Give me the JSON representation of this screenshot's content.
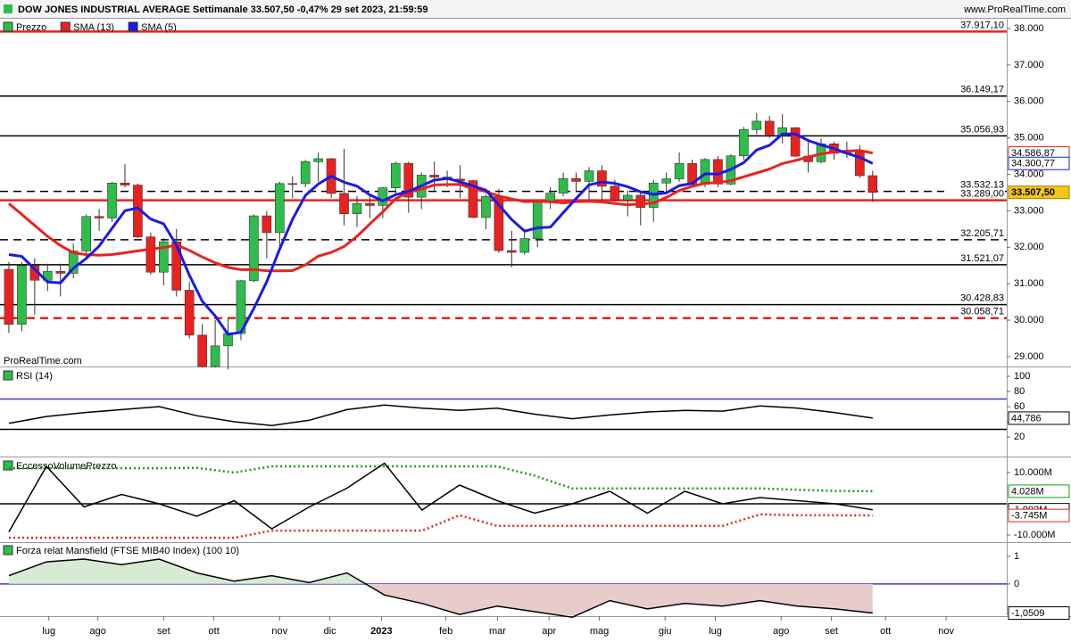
{
  "header": {
    "title": "DOW JONES INDUSTRIAL AVERAGE Settimanale 33.507,50 -0,47% 29 set 2023, 21:59:59",
    "site": "www.ProRealTime.com",
    "watermark": "ProRealTime.com"
  },
  "xaxis": {
    "xlim": [
      -0.69,
      77.4
    ],
    "xticks": [
      {
        "value": 3.1,
        "label": "lug"
      },
      {
        "value": 6.9,
        "label": "ago"
      },
      {
        "value": 12.0,
        "label": "set"
      },
      {
        "value": 15.9,
        "label": "ott"
      },
      {
        "value": 21.0,
        "label": "nov"
      },
      {
        "value": 24.9,
        "label": "dic"
      },
      {
        "value": 28.9,
        "label": "2023"
      },
      {
        "value": 33.9,
        "label": "feb"
      },
      {
        "value": 37.9,
        "label": "mar"
      },
      {
        "value": 41.9,
        "label": "apr"
      },
      {
        "value": 45.8,
        "label": "mag"
      },
      {
        "value": 50.9,
        "label": "giu"
      },
      {
        "value": 54.8,
        "label": "lug"
      },
      {
        "value": 59.9,
        "label": "ago"
      },
      {
        "value": 63.8,
        "label": "set"
      },
      {
        "value": 68.0,
        "label": "ott"
      },
      {
        "value": 72.7,
        "label": "nov"
      }
    ]
  },
  "chart_data": [
    {
      "type": "candlestick",
      "ylim": [
        28755,
        38245
      ],
      "yticks": [
        {
          "value": 38000,
          "label": "38.000"
        },
        {
          "value": 37000,
          "label": "37.000"
        },
        {
          "value": 36000,
          "label": "36.000"
        },
        {
          "value": 35000,
          "label": "35.000"
        },
        {
          "value": 34000,
          "label": "34.000"
        },
        {
          "value": 33000,
          "label": "33.000"
        },
        {
          "value": 32000,
          "label": "32.000"
        },
        {
          "value": 31000,
          "label": "31.000"
        },
        {
          "value": 30000,
          "label": "30.000"
        },
        {
          "value": 29000,
          "label": "29.000"
        }
      ],
      "levels": [
        {
          "value": 37917.1,
          "label": "37.917,10",
          "color": "#e8231f",
          "style": "solid"
        },
        {
          "value": 36149.17,
          "label": "36.149,17",
          "color": "#000000",
          "style": "solid"
        },
        {
          "value": 35056.93,
          "label": "35.056,93",
          "color": "#000000",
          "style": "solid"
        },
        {
          "value": 33532.13,
          "label": "33.532,13",
          "color": "#000000",
          "style": "dashed"
        },
        {
          "value": 33289,
          "label": "33.289,00",
          "color": "#e8231f",
          "style": "solid"
        },
        {
          "value": 32205.71,
          "label": "32.205,71",
          "color": "#000000",
          "style": "dashed"
        },
        {
          "value": 31521.07,
          "label": "31.521,07",
          "color": "#000000",
          "style": "solid"
        },
        {
          "value": 30428.83,
          "label": "30.428,83",
          "color": "#000000",
          "style": "solid"
        },
        {
          "value": 30058.71,
          "label": "30.058,71",
          "color": "#e8231f",
          "style": "dashed"
        }
      ],
      "candles": {
        "name": "Prezzo",
        "up_color": "#2ebd4a",
        "down_color": "#e8231f",
        "last_label": "33.507,50",
        "open": [
          31393,
          29888,
          31501,
          31097,
          31338,
          31288,
          31899,
          32845,
          32803,
          33761,
          33706,
          32283,
          31318,
          32152,
          30822,
          29590,
          28726,
          29297,
          29635,
          31083,
          32862,
          32403,
          33748,
          33746,
          34347,
          34430,
          33477,
          32920,
          33204,
          33147,
          33631,
          34303,
          33375,
          33978,
          33926,
          33870,
          33827,
          32817,
          33391,
          31910,
          31862,
          32238,
          33274,
          33485,
          33886,
          33809,
          34098,
          33674,
          33301,
          33427,
          33093,
          33763,
          33877,
          34299,
          33727,
          34408,
          33735,
          34509,
          35228,
          35459,
          35066,
          35281,
          34500,
          34347,
          34838,
          34577,
          34618,
          33964
        ],
        "high": [
          31600,
          31600,
          31700,
          31550,
          31550,
          32100,
          32900,
          33050,
          33800,
          34280,
          33750,
          32400,
          32250,
          32500,
          31050,
          29900,
          30000,
          30050,
          31100,
          32900,
          33000,
          33800,
          33950,
          34400,
          34600,
          34450,
          34700,
          33400,
          33400,
          33650,
          34350,
          34350,
          34050,
          34350,
          34100,
          34250,
          33850,
          33450,
          33600,
          32450,
          32500,
          33300,
          33650,
          34050,
          34050,
          34200,
          34250,
          33850,
          33550,
          33500,
          33850,
          34050,
          34600,
          34400,
          34450,
          34500,
          34550,
          35300,
          35680,
          35600,
          35650,
          35300,
          34900,
          34980,
          34900,
          34900,
          34800,
          34100
        ],
        "low": [
          29650,
          29700,
          30150,
          30800,
          30650,
          31150,
          31700,
          32450,
          32700,
          33650,
          32250,
          31250,
          30950,
          30650,
          29500,
          28700,
          28700,
          28650,
          29450,
          31050,
          31700,
          32000,
          33350,
          33650,
          33800,
          33350,
          32600,
          32550,
          32800,
          32800,
          33450,
          32950,
          33050,
          33550,
          33650,
          33350,
          32800,
          32500,
          31850,
          31450,
          31800,
          32000,
          33050,
          33400,
          33550,
          33300,
          33200,
          33250,
          32850,
          32600,
          32700,
          33500,
          33800,
          33700,
          33650,
          33650,
          33700,
          34400,
          35100,
          35000,
          34850,
          34480,
          34050,
          34300,
          34400,
          34450,
          33900,
          33250
        ],
        "close": [
          29888,
          31501,
          31097,
          31338,
          31288,
          31899,
          32845,
          32803,
          33761,
          33706,
          32283,
          31318,
          32152,
          30822,
          29590,
          28726,
          29297,
          29635,
          31083,
          32862,
          32403,
          33748,
          33746,
          34347,
          34430,
          33477,
          32920,
          33204,
          33147,
          33631,
          34303,
          33375,
          33978,
          33926,
          33870,
          33827,
          32817,
          33391,
          31910,
          31862,
          32238,
          33274,
          33485,
          33886,
          33809,
          34098,
          33674,
          33301,
          33427,
          33093,
          33763,
          33877,
          34299,
          33727,
          34408,
          33735,
          34509,
          35228,
          35459,
          35066,
          35281,
          34500,
          34347,
          34838,
          34577,
          34618,
          33964,
          33507.5
        ]
      },
      "series": [
        {
          "name": "SMA (13)",
          "color": "#e8231f",
          "last_label": "34.586,87",
          "values": [
            33200,
            32900,
            32600,
            32300,
            32050,
            31850,
            31800,
            31780,
            31800,
            31850,
            31900,
            31950,
            31991,
            32063,
            31916,
            31733,
            31576,
            31449,
            31386,
            31388,
            31357,
            31356,
            31359,
            31518,
            31757,
            31859,
            32020,
            32298,
            32638,
            32972,
            33331,
            33507,
            33593,
            33710,
            33720,
            33726,
            33608,
            33528,
            33408,
            33326,
            33252,
            33262,
            33250,
            33218,
            33252,
            33261,
            33242,
            33198,
            33167,
            33188,
            33217,
            33368,
            33556,
            33670,
            33757,
            33777,
            33825,
            33934,
            34038,
            34145,
            34298,
            34380,
            34477,
            34559,
            34613,
            34638,
            34656,
            34586.87
          ]
        },
        {
          "name": "SMA (5)",
          "color": "#1a1ae6",
          "last_label": "34.300,77",
          "values": [
            31800,
            31750,
            31400,
            31050,
            31022,
            31425,
            31693,
            32035,
            32519,
            33003,
            33080,
            32774,
            32644,
            32056,
            31233,
            30522,
            30117,
            29614,
            29666,
            30321,
            31056,
            31946,
            32768,
            33421,
            33735,
            33950,
            33784,
            33676,
            33436,
            33276,
            33441,
            33532,
            33687,
            33843,
            33890,
            33795,
            33684,
            33566,
            33163,
            32761,
            32444,
            32535,
            32554,
            32949,
            33338,
            33710,
            33790,
            33754,
            33662,
            33519,
            33452,
            33492,
            33692,
            33752,
            34015,
            34009,
            34136,
            34321,
            34668,
            34799,
            35109,
            35107,
            34931,
            34806,
            34709,
            34576,
            34469,
            34300.77
          ]
        }
      ]
    },
    {
      "type": "line",
      "title": "RSI (14)",
      "ylim": [
        -4.7,
        110.6
      ],
      "yticks": [
        20,
        40,
        60,
        80,
        100
      ],
      "levels": [
        {
          "value": 70,
          "color": "#3a3acc",
          "style": "solid"
        },
        {
          "value": 30,
          "color": "#000000",
          "style": "solid"
        }
      ],
      "series": [
        {
          "color": "#000000",
          "last_label": "44,786",
          "values": [
            38,
            47,
            52,
            56,
            60,
            48,
            40,
            35,
            42,
            56,
            62,
            58,
            55,
            58,
            50,
            44,
            49,
            53,
            55,
            54,
            61,
            58,
            52,
            44.786
          ]
        }
      ]
    },
    {
      "type": "line",
      "title": "EccessoVolumePrezzo",
      "ylim": [
        -12,
        14.57
      ],
      "yticks": [
        {
          "value": 10,
          "label": "10.000M"
        },
        {
          "value": -10,
          "label": "-10.000M"
        }
      ],
      "levels": [
        {
          "value": 0,
          "color": "#000000",
          "style": "solid"
        }
      ],
      "series": [
        {
          "color": "#1a9a1a",
          "style": "dotted",
          "last_label": "4.028M",
          "values": [
            11.4,
            11.4,
            11.4,
            11.4,
            11.4,
            11.5,
            10,
            12,
            12,
            12,
            12,
            12,
            12,
            12,
            9,
            4.9,
            4.9,
            4.9,
            4.9,
            4.9,
            4.9,
            4.5,
            4.1,
            4.028
          ]
        },
        {
          "color": "#000000",
          "last_label": "-1.902M",
          "values": [
            -9,
            12,
            -1,
            3,
            0,
            -4,
            1,
            -8,
            -1,
            5,
            13,
            -2,
            6,
            1,
            -3,
            0,
            4,
            -3,
            4,
            0,
            2,
            1,
            0,
            -1.902
          ]
        },
        {
          "color": "#e8231f",
          "style": "dotted",
          "last_label": "-3.745M",
          "values": [
            -10.9,
            -10.9,
            -10.9,
            -10.9,
            -10.9,
            -10.9,
            -10.9,
            -8.6,
            -8.6,
            -8.6,
            -8.6,
            -8.6,
            -3.7,
            -7.1,
            -7.1,
            -7.1,
            -7.1,
            -7.1,
            -7.1,
            -7.1,
            -3.4,
            -3.7,
            -3.7,
            -3.745
          ]
        }
      ]
    },
    {
      "type": "area",
      "title": "Forza relat Mansfield (FTSE MIB40 Index) (100 10)",
      "ylim": [
        -1.13,
        1.48
      ],
      "yticks": [
        1,
        0
      ],
      "levels": [
        {
          "value": 0,
          "color": "#3a3acc",
          "style": "solid"
        }
      ],
      "series": [
        {
          "color": "#000000",
          "pos_fill": "#d7ead2",
          "neg_fill": "#e8cccc",
          "last_label": "-1,0509",
          "values": [
            0.3,
            0.8,
            0.9,
            0.7,
            0.9,
            0.4,
            0.1,
            0.3,
            0.05,
            0.4,
            -0.4,
            -0.7,
            -1.1,
            -0.8,
            -1.0,
            -1.2,
            -0.6,
            -0.9,
            -0.7,
            -0.8,
            -0.6,
            -0.8,
            -0.9,
            -1.0509
          ]
        }
      ]
    }
  ]
}
